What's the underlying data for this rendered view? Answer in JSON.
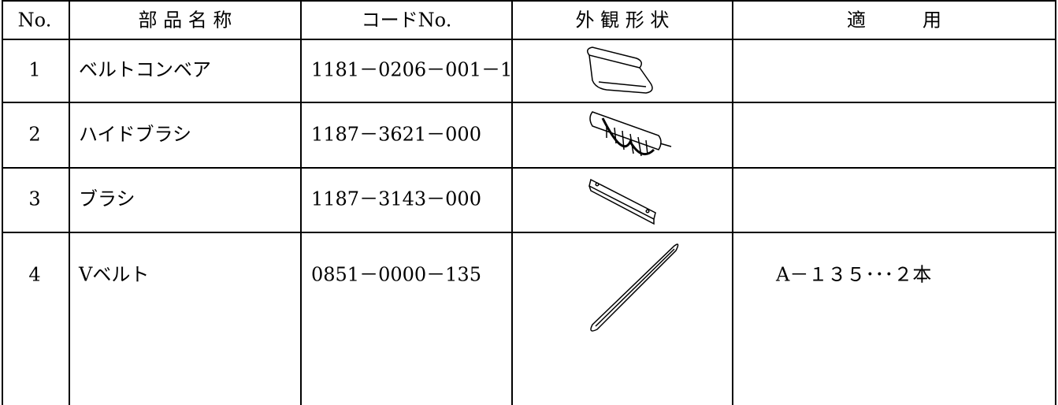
{
  "table": {
    "header": [
      "No.",
      "部 品 名 称",
      "コードNo.",
      "外 観 形 状",
      "適　　　用"
    ],
    "rows": [
      {
        "no": "1",
        "name": "ベルトコンベア",
        "code": "1181－0206－001－1"
      },
      {
        "no": "2",
        "name": "ハイドブラシ",
        "code": "1187－3621－000"
      },
      {
        "no": "3",
        "name": "ブラシ",
        "code": "1187－3143－000"
      },
      {
        "no": "4",
        "name": "Vベルト",
        "code": "0851－0000－135",
        "use": "A－１３５･･･２本"
      }
    ]
  }
}
